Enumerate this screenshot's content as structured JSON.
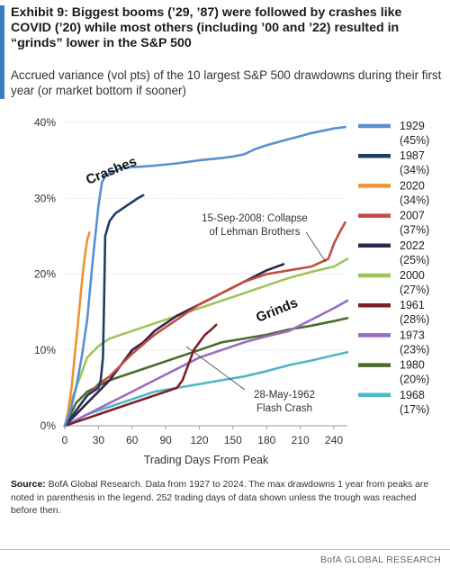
{
  "header": {
    "title": "Exhibit 9: Biggest booms (’29, ’87) were followed by crashes like COVID (’20) while most others (including ’00 and ’22) resulted in “grinds” lower in the S&P 500",
    "subtitle": "Accrued variance (vol pts) of the 10 largest S&P 500 drawdowns during their first year (or market bottom if sooner)",
    "accent_color": "#3a7cc0"
  },
  "source": {
    "label": "Source:",
    "text": " BofA Global Research. Data from 1927 to 2024. The max drawdowns 1 year from peaks are noted in parenthesis in the legend. 252 trading days of data shown unless the trough was reached before then."
  },
  "footer": {
    "text": "BofA GLOBAL RESEARCH"
  },
  "chart_data": {
    "type": "line",
    "xlabel": "Trading Days From Peak",
    "xlim": [
      0,
      252
    ],
    "xticks": [
      0,
      30,
      60,
      90,
      120,
      150,
      180,
      210,
      240
    ],
    "ylim": [
      0,
      40
    ],
    "yticks": [
      0,
      10,
      20,
      30,
      40
    ],
    "ytick_labels": [
      "0%",
      "10%",
      "20%",
      "30%",
      "40%"
    ],
    "legend_position": "right",
    "annotations": [
      {
        "text": "Crashes",
        "style": "bold-rotated"
      },
      {
        "text": "Grinds",
        "style": "bold-rotated"
      },
      {
        "text": "15-Sep-2008: Collapse of Lehman Brothers"
      },
      {
        "text": "28-May-1962 Flash Crash"
      }
    ],
    "series": [
      {
        "name": "1929",
        "drawdown": "(45%)",
        "color": "#5a8fd0",
        "x": [
          0,
          5,
          10,
          15,
          20,
          25,
          30,
          33,
          36,
          40,
          45,
          50,
          60,
          70,
          80,
          100,
          120,
          140,
          150,
          160,
          170,
          180,
          200,
          210,
          220,
          230,
          240,
          250
        ],
        "y": [
          0,
          2,
          5,
          9,
          14,
          22,
          29,
          32,
          33,
          33.3,
          33.6,
          34,
          34.1,
          34.2,
          34.3,
          34.6,
          35,
          35.3,
          35.5,
          35.8,
          36.5,
          37,
          37.8,
          38.2,
          38.6,
          38.9,
          39.2,
          39.4
        ]
      },
      {
        "name": "1987",
        "drawdown": "(34%)",
        "color": "#1c3f66",
        "x": [
          0,
          5,
          10,
          15,
          20,
          25,
          30,
          32,
          34,
          35,
          36,
          38,
          40,
          45,
          50,
          55,
          60,
          65,
          70
        ],
        "y": [
          0,
          1,
          2,
          3,
          4,
          4.5,
          5,
          6,
          9,
          16,
          25,
          26,
          27,
          28,
          28.5,
          29,
          29.5,
          30,
          30.4
        ]
      },
      {
        "name": "2020",
        "drawdown": "(34%)",
        "color": "#f0922e",
        "x": [
          0,
          2,
          4,
          6,
          8,
          10,
          12,
          14,
          16,
          18,
          20,
          22
        ],
        "y": [
          0,
          1,
          3,
          5,
          8,
          11,
          14,
          17,
          20,
          22.5,
          24.5,
          25.5
        ]
      },
      {
        "name": "2007",
        "drawdown": "(37%)",
        "color": "#c44c41",
        "x": [
          0,
          10,
          20,
          30,
          40,
          60,
          80,
          100,
          120,
          140,
          160,
          180,
          200,
          220,
          235,
          240,
          245,
          250
        ],
        "y": [
          0,
          2,
          4,
          5.5,
          6.5,
          9.5,
          12,
          14,
          16,
          17.5,
          19,
          20,
          20.5,
          21,
          22,
          24,
          25.5,
          26.8
        ]
      },
      {
        "name": "2022",
        "drawdown": "(25%)",
        "color": "#34244a",
        "x": [
          0,
          10,
          20,
          30,
          40,
          50,
          60,
          70,
          80,
          100,
          120,
          140,
          160,
          180,
          195
        ],
        "y": [
          0,
          1.5,
          3,
          4.5,
          6,
          8,
          10,
          11,
          12.5,
          14.5,
          16,
          17.5,
          19,
          20.5,
          21.3
        ]
      },
      {
        "name": "2000",
        "drawdown": "(27%)",
        "color": "#9dc55c",
        "x": [
          0,
          5,
          10,
          15,
          20,
          30,
          40,
          60,
          80,
          100,
          120,
          140,
          160,
          180,
          200,
          220,
          240,
          252
        ],
        "y": [
          0,
          3,
          5,
          7,
          9,
          10.5,
          11.5,
          12.5,
          13.5,
          14.5,
          15.5,
          16.5,
          17.5,
          18.5,
          19.5,
          20.3,
          21,
          22
        ]
      },
      {
        "name": "1961",
        "drawdown": "(28%)",
        "color": "#7d2027",
        "x": [
          0,
          10,
          20,
          30,
          40,
          50,
          60,
          70,
          80,
          90,
          100,
          105,
          110,
          115,
          120,
          125,
          130,
          135
        ],
        "y": [
          0,
          0.5,
          1,
          1.5,
          2,
          2.5,
          3,
          3.5,
          4,
          4.5,
          5,
          6,
          8,
          10,
          11,
          12,
          12.6,
          13.3
        ]
      },
      {
        "name": "1973",
        "drawdown": "(23%)",
        "color": "#9a6cc0",
        "x": [
          0,
          20,
          40,
          60,
          80,
          100,
          120,
          140,
          160,
          180,
          200,
          220,
          240,
          252
        ],
        "y": [
          0,
          1.5,
          3,
          4.5,
          6,
          7.5,
          9,
          10,
          11,
          11.8,
          12.5,
          14,
          15.5,
          16.5
        ]
      },
      {
        "name": "1980",
        "drawdown": "(20%)",
        "color": "#4c6b2b",
        "x": [
          0,
          10,
          20,
          40,
          60,
          80,
          100,
          120,
          140,
          160,
          180,
          200,
          220,
          240,
          252
        ],
        "y": [
          0,
          3,
          4.5,
          6,
          7,
          8,
          9,
          10,
          11,
          11.5,
          12,
          12.7,
          13.2,
          13.8,
          14.2
        ]
      },
      {
        "name": "1968",
        "drawdown": "(17%)",
        "color": "#4fb6c8",
        "x": [
          0,
          20,
          40,
          60,
          80,
          100,
          120,
          140,
          160,
          180,
          200,
          220,
          240,
          252
        ],
        "y": [
          0,
          1.5,
          2.5,
          3.5,
          4.5,
          5,
          5.5,
          6,
          6.5,
          7.2,
          8,
          8.6,
          9.3,
          9.7
        ]
      }
    ]
  }
}
